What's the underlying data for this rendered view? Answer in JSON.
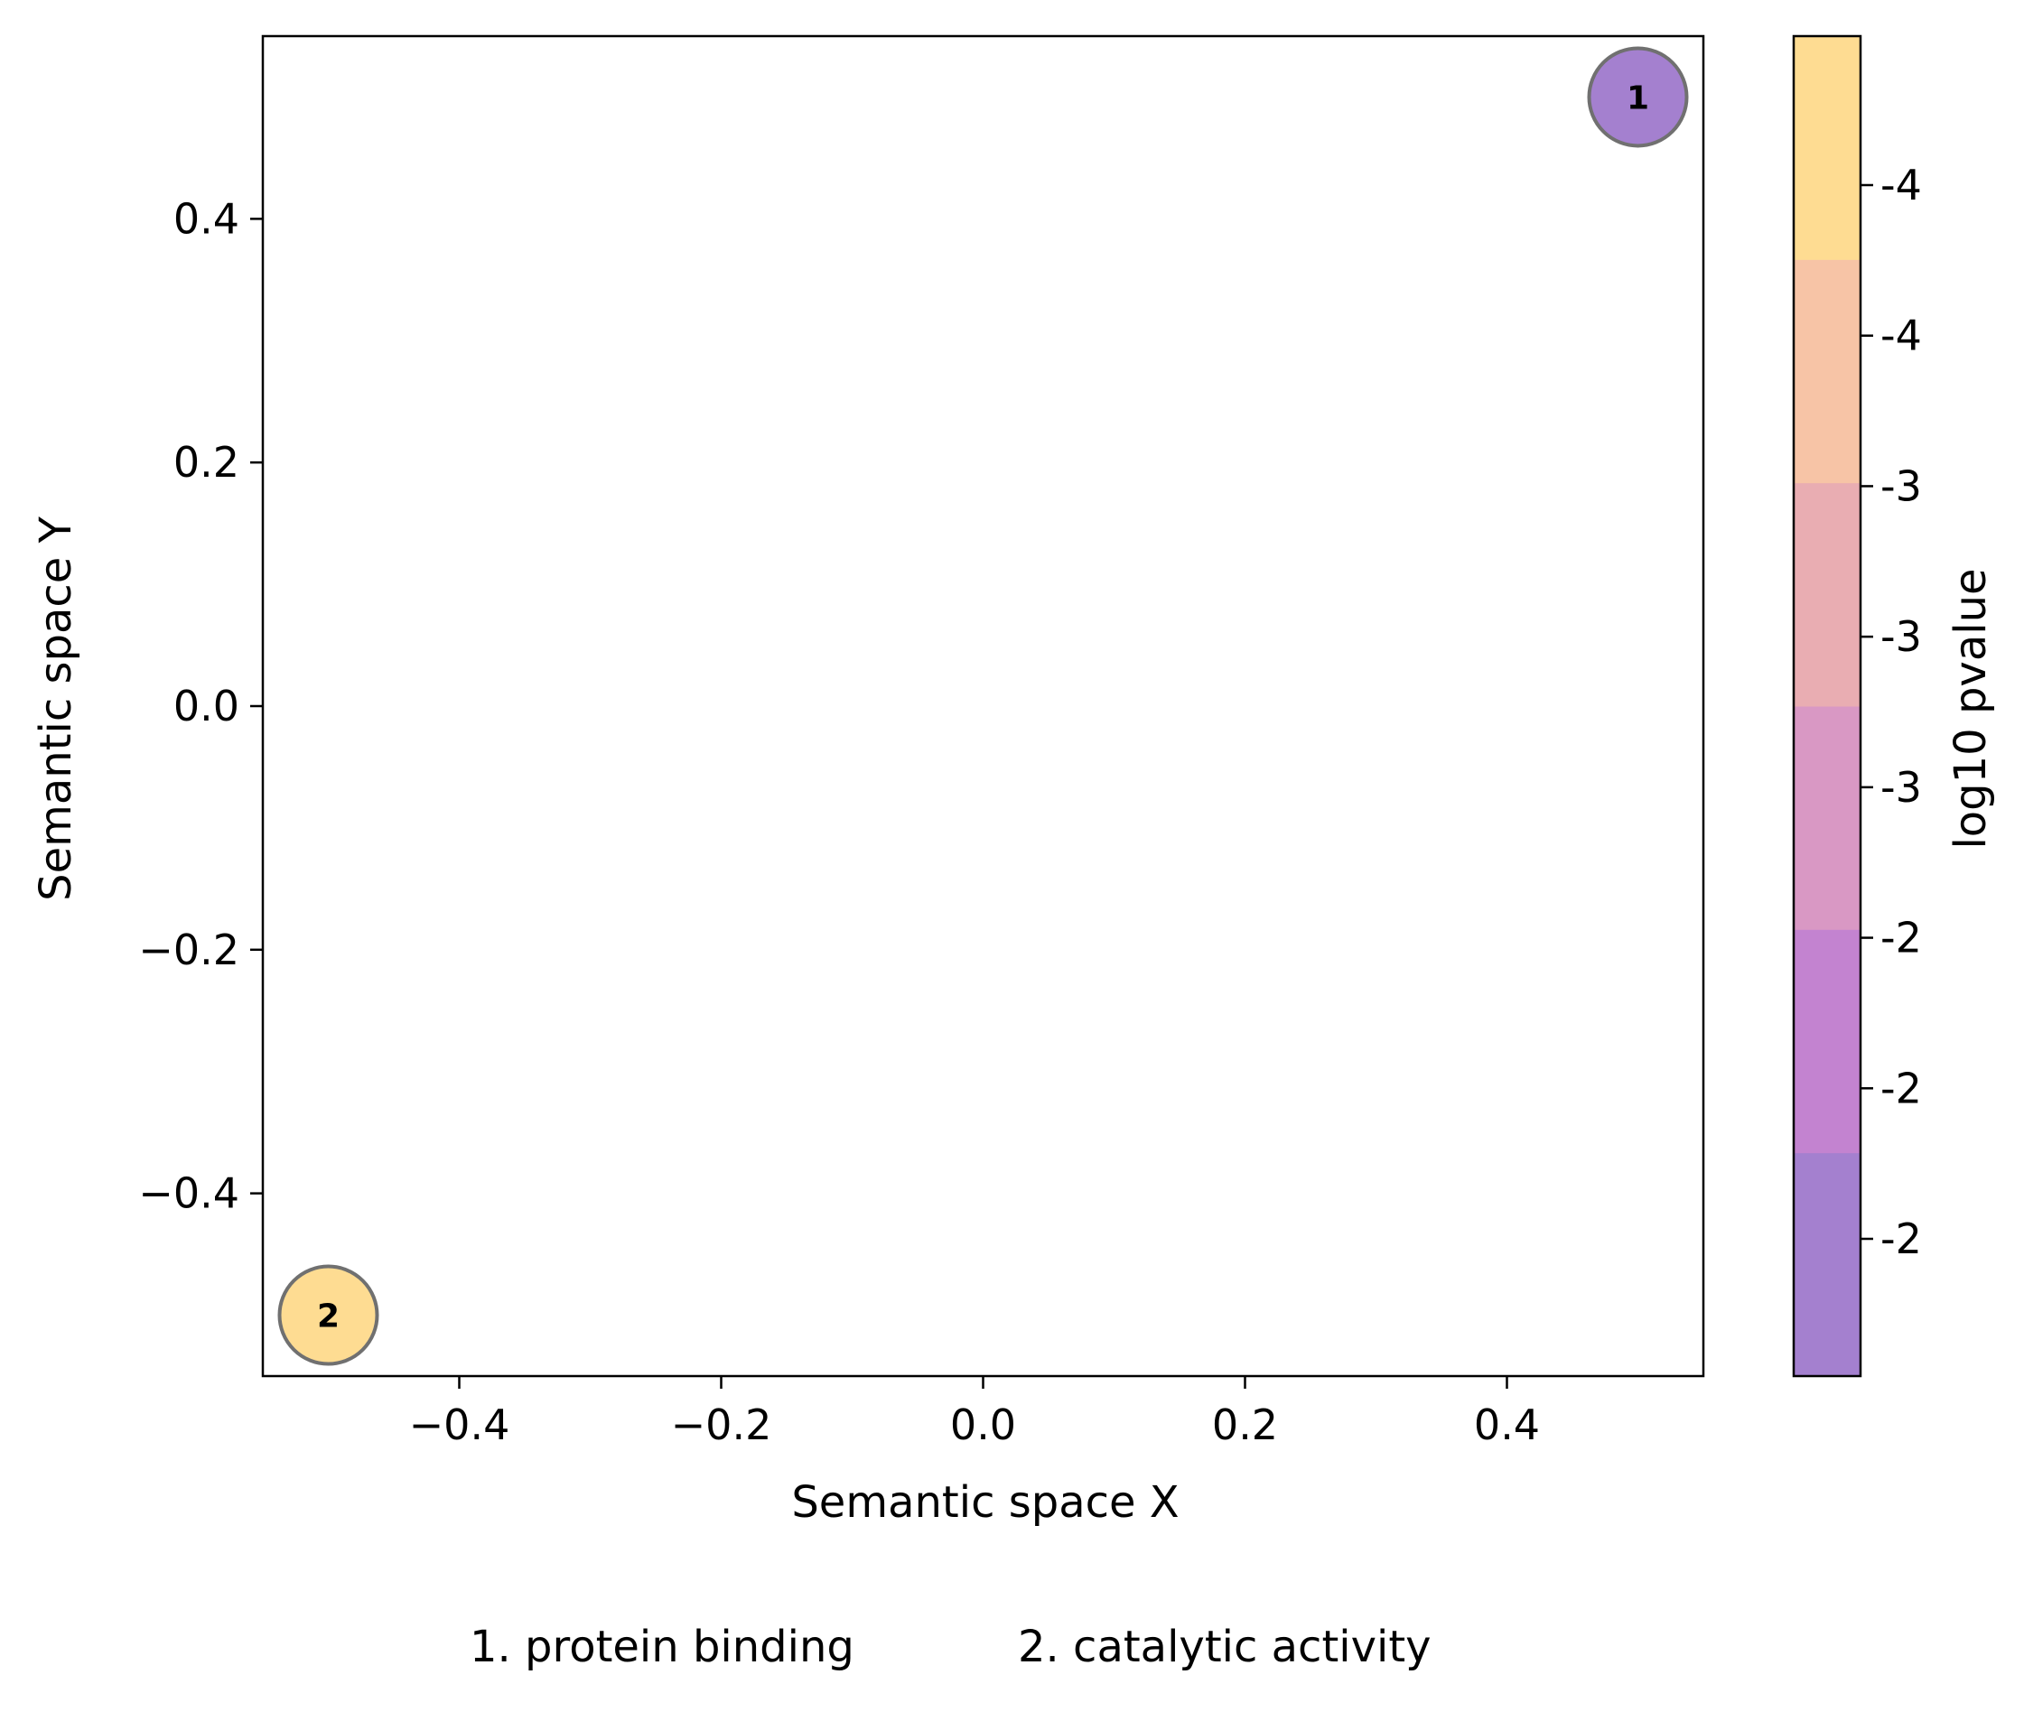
{
  "chart_data": {
    "type": "scatter",
    "xlabel": "Semantic space X",
    "ylabel": "Semantic space Y",
    "xlim": [
      -0.55,
      0.55
    ],
    "ylim": [
      -0.55,
      0.55
    ],
    "x_ticks": [
      -0.4,
      -0.2,
      0.0,
      0.2,
      0.4
    ],
    "x_tick_labels": [
      "−0.4",
      "−0.2",
      "0.0",
      "0.2",
      "0.4"
    ],
    "y_ticks": [
      -0.4,
      -0.2,
      0.0,
      0.2,
      0.4
    ],
    "y_tick_labels": [
      "−0.4",
      "−0.2",
      "0.0",
      "0.2",
      "0.4"
    ],
    "grid": false,
    "points": [
      {
        "label": "1",
        "x": 0.5,
        "y": 0.5,
        "color": "#a480cf"
      },
      {
        "label": "2",
        "x": -0.5,
        "y": -0.5,
        "color": "#fedc92"
      }
    ],
    "colorbar": {
      "label": "log10 pvalue",
      "colors": [
        "#a480cf",
        "#c383d0",
        "#d998c4",
        "#e9adb2",
        "#f7c4a6",
        "#fedc92"
      ],
      "tick_labels": [
        "-4",
        "-4",
        "-3",
        "-3",
        "-3",
        "-2",
        "-2",
        "-2"
      ]
    },
    "legend": [
      {
        "text": "1. protein binding"
      },
      {
        "text": "2. catalytic activity"
      }
    ]
  }
}
